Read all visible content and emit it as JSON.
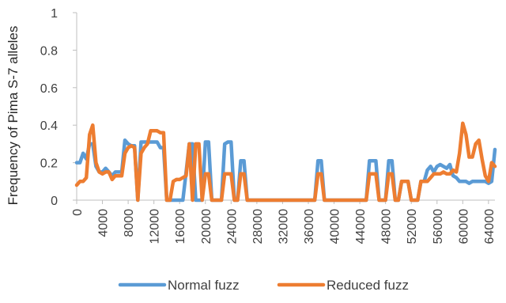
{
  "chart_data": {
    "type": "line",
    "title": "",
    "xlabel": "",
    "ylabel": "Frequency of Pima S-7 alleles",
    "xlim": [
      0,
      65000
    ],
    "ylim": [
      0,
      1
    ],
    "x_ticks": [
      0,
      4000,
      8000,
      12000,
      16000,
      20000,
      24000,
      28000,
      32000,
      36000,
      40000,
      44000,
      48000,
      52000,
      56000,
      60000,
      64000
    ],
    "y_ticks": [
      0,
      0.2,
      0.4,
      0.6,
      0.8,
      1
    ],
    "y_tick_labels": [
      "0",
      "0.2",
      "0.4",
      "0.6",
      "0.8",
      "1"
    ],
    "grid": false,
    "legend_position": "bottom",
    "series": [
      {
        "name": "Normal fuzz",
        "color": "#5B9BD5",
        "points": [
          [
            0,
            0.2
          ],
          [
            500,
            0.2
          ],
          [
            1000,
            0.25
          ],
          [
            1500,
            0.22
          ],
          [
            2000,
            0.3
          ],
          [
            2500,
            0.3
          ],
          [
            3000,
            0.18
          ],
          [
            3500,
            0.15
          ],
          [
            4000,
            0.15
          ],
          [
            4500,
            0.17
          ],
          [
            5000,
            0.15
          ],
          [
            5500,
            0.13
          ],
          [
            6000,
            0.15
          ],
          [
            6500,
            0.15
          ],
          [
            7000,
            0.15
          ],
          [
            7500,
            0.32
          ],
          [
            8000,
            0.3
          ],
          [
            8500,
            0.29
          ],
          [
            9000,
            0.29
          ],
          [
            9500,
            0.0
          ],
          [
            10000,
            0.31
          ],
          [
            10500,
            0.31
          ],
          [
            11000,
            0.31
          ],
          [
            11500,
            0.31
          ],
          [
            12000,
            0.31
          ],
          [
            12500,
            0.31
          ],
          [
            13000,
            0.28
          ],
          [
            13500,
            0.28
          ],
          [
            14000,
            0.0
          ],
          [
            14500,
            0.0
          ],
          [
            15000,
            0.0
          ],
          [
            15500,
            0.0
          ],
          [
            16000,
            0.0
          ],
          [
            16500,
            0.0
          ],
          [
            17000,
            0.15
          ],
          [
            17500,
            0.3
          ],
          [
            18000,
            0.3
          ],
          [
            18500,
            0.0
          ],
          [
            19000,
            0.0
          ],
          [
            19500,
            0.0
          ],
          [
            20000,
            0.31
          ],
          [
            20500,
            0.31
          ],
          [
            21000,
            0.0
          ],
          [
            21500,
            0.0
          ],
          [
            22000,
            0.0
          ],
          [
            22500,
            0.0
          ],
          [
            23000,
            0.3
          ],
          [
            23500,
            0.31
          ],
          [
            24000,
            0.31
          ],
          [
            24500,
            0.0
          ],
          [
            25000,
            0.0
          ],
          [
            25500,
            0.21
          ],
          [
            26000,
            0.21
          ],
          [
            26500,
            0.0
          ],
          [
            27000,
            0.0
          ],
          [
            28000,
            0.0
          ],
          [
            30000,
            0.0
          ],
          [
            32000,
            0.0
          ],
          [
            34000,
            0.0
          ],
          [
            36000,
            0.0
          ],
          [
            37000,
            0.0
          ],
          [
            37500,
            0.21
          ],
          [
            38000,
            0.21
          ],
          [
            38500,
            0.0
          ],
          [
            39000,
            0.0
          ],
          [
            40000,
            0.0
          ],
          [
            42000,
            0.0
          ],
          [
            44000,
            0.0
          ],
          [
            45000,
            0.0
          ],
          [
            45500,
            0.21
          ],
          [
            46000,
            0.21
          ],
          [
            46500,
            0.21
          ],
          [
            47000,
            0.0
          ],
          [
            47500,
            0.0
          ],
          [
            48000,
            0.0
          ],
          [
            48500,
            0.21
          ],
          [
            49000,
            0.21
          ],
          [
            49500,
            0.0
          ],
          [
            50000,
            0.0
          ],
          [
            50500,
            0.1
          ],
          [
            51000,
            0.1
          ],
          [
            51500,
            0.1
          ],
          [
            52000,
            0.0
          ],
          [
            52500,
            0.0
          ],
          [
            53000,
            0.0
          ],
          [
            53500,
            0.1
          ],
          [
            54000,
            0.1
          ],
          [
            54500,
            0.16
          ],
          [
            55000,
            0.18
          ],
          [
            55500,
            0.15
          ],
          [
            56000,
            0.18
          ],
          [
            56500,
            0.19
          ],
          [
            57000,
            0.18
          ],
          [
            57500,
            0.17
          ],
          [
            58000,
            0.19
          ],
          [
            58500,
            0.13
          ],
          [
            59000,
            0.12
          ],
          [
            59500,
            0.1
          ],
          [
            60000,
            0.1
          ],
          [
            60500,
            0.1
          ],
          [
            61000,
            0.09
          ],
          [
            61500,
            0.1
          ],
          [
            62000,
            0.1
          ],
          [
            62500,
            0.1
          ],
          [
            63000,
            0.1
          ],
          [
            63500,
            0.1
          ],
          [
            64000,
            0.09
          ],
          [
            64500,
            0.1
          ],
          [
            65000,
            0.27
          ]
        ]
      },
      {
        "name": "Reduced fuzz",
        "color": "#ED7D31",
        "points": [
          [
            0,
            0.08
          ],
          [
            500,
            0.1
          ],
          [
            1000,
            0.1
          ],
          [
            1500,
            0.12
          ],
          [
            2000,
            0.35
          ],
          [
            2500,
            0.4
          ],
          [
            3000,
            0.2
          ],
          [
            3500,
            0.15
          ],
          [
            4000,
            0.14
          ],
          [
            4500,
            0.15
          ],
          [
            5000,
            0.15
          ],
          [
            5500,
            0.11
          ],
          [
            6000,
            0.13
          ],
          [
            6500,
            0.13
          ],
          [
            7000,
            0.13
          ],
          [
            7500,
            0.25
          ],
          [
            8000,
            0.28
          ],
          [
            8500,
            0.29
          ],
          [
            9000,
            0.28
          ],
          [
            9500,
            0.0
          ],
          [
            10000,
            0.25
          ],
          [
            10500,
            0.28
          ],
          [
            11000,
            0.3
          ],
          [
            11500,
            0.37
          ],
          [
            12000,
            0.37
          ],
          [
            12500,
            0.37
          ],
          [
            13000,
            0.36
          ],
          [
            13500,
            0.36
          ],
          [
            14000,
            0.0
          ],
          [
            14500,
            0.0
          ],
          [
            15000,
            0.1
          ],
          [
            15500,
            0.11
          ],
          [
            16000,
            0.11
          ],
          [
            16500,
            0.12
          ],
          [
            17000,
            0.13
          ],
          [
            17500,
            0.3
          ],
          [
            18000,
            0.0
          ],
          [
            18500,
            0.3
          ],
          [
            19000,
            0.3
          ],
          [
            19500,
            0.0
          ],
          [
            20000,
            0.14
          ],
          [
            20500,
            0.14
          ],
          [
            21000,
            0.0
          ],
          [
            21500,
            0.0
          ],
          [
            22000,
            0.0
          ],
          [
            22500,
            0.0
          ],
          [
            23000,
            0.14
          ],
          [
            23500,
            0.14
          ],
          [
            24000,
            0.14
          ],
          [
            24500,
            0.0
          ],
          [
            25000,
            0.0
          ],
          [
            25500,
            0.14
          ],
          [
            26000,
            0.14
          ],
          [
            26500,
            0.0
          ],
          [
            27000,
            0.0
          ],
          [
            28000,
            0.0
          ],
          [
            30000,
            0.0
          ],
          [
            32000,
            0.0
          ],
          [
            34000,
            0.0
          ],
          [
            36000,
            0.0
          ],
          [
            37000,
            0.0
          ],
          [
            37500,
            0.14
          ],
          [
            38000,
            0.14
          ],
          [
            38500,
            0.0
          ],
          [
            39000,
            0.0
          ],
          [
            40000,
            0.0
          ],
          [
            42000,
            0.0
          ],
          [
            44000,
            0.0
          ],
          [
            45000,
            0.0
          ],
          [
            45500,
            0.14
          ],
          [
            46000,
            0.14
          ],
          [
            46500,
            0.14
          ],
          [
            47000,
            0.0
          ],
          [
            47500,
            0.0
          ],
          [
            48000,
            0.0
          ],
          [
            48500,
            0.14
          ],
          [
            49000,
            0.14
          ],
          [
            49500,
            0.0
          ],
          [
            50000,
            0.0
          ],
          [
            50500,
            0.1
          ],
          [
            51000,
            0.1
          ],
          [
            51500,
            0.1
          ],
          [
            52000,
            0.0
          ],
          [
            52500,
            0.0
          ],
          [
            53000,
            0.0
          ],
          [
            53500,
            0.1
          ],
          [
            54000,
            0.1
          ],
          [
            54500,
            0.1
          ],
          [
            55000,
            0.12
          ],
          [
            55500,
            0.14
          ],
          [
            56000,
            0.14
          ],
          [
            56500,
            0.14
          ],
          [
            57000,
            0.15
          ],
          [
            57500,
            0.14
          ],
          [
            58000,
            0.14
          ],
          [
            58500,
            0.16
          ],
          [
            59000,
            0.15
          ],
          [
            59500,
            0.25
          ],
          [
            60000,
            0.41
          ],
          [
            60500,
            0.35
          ],
          [
            61000,
            0.23
          ],
          [
            61500,
            0.23
          ],
          [
            62000,
            0.3
          ],
          [
            62500,
            0.32
          ],
          [
            63000,
            0.22
          ],
          [
            63500,
            0.13
          ],
          [
            64000,
            0.1
          ],
          [
            64500,
            0.2
          ],
          [
            65000,
            0.18
          ]
        ]
      }
    ]
  }
}
